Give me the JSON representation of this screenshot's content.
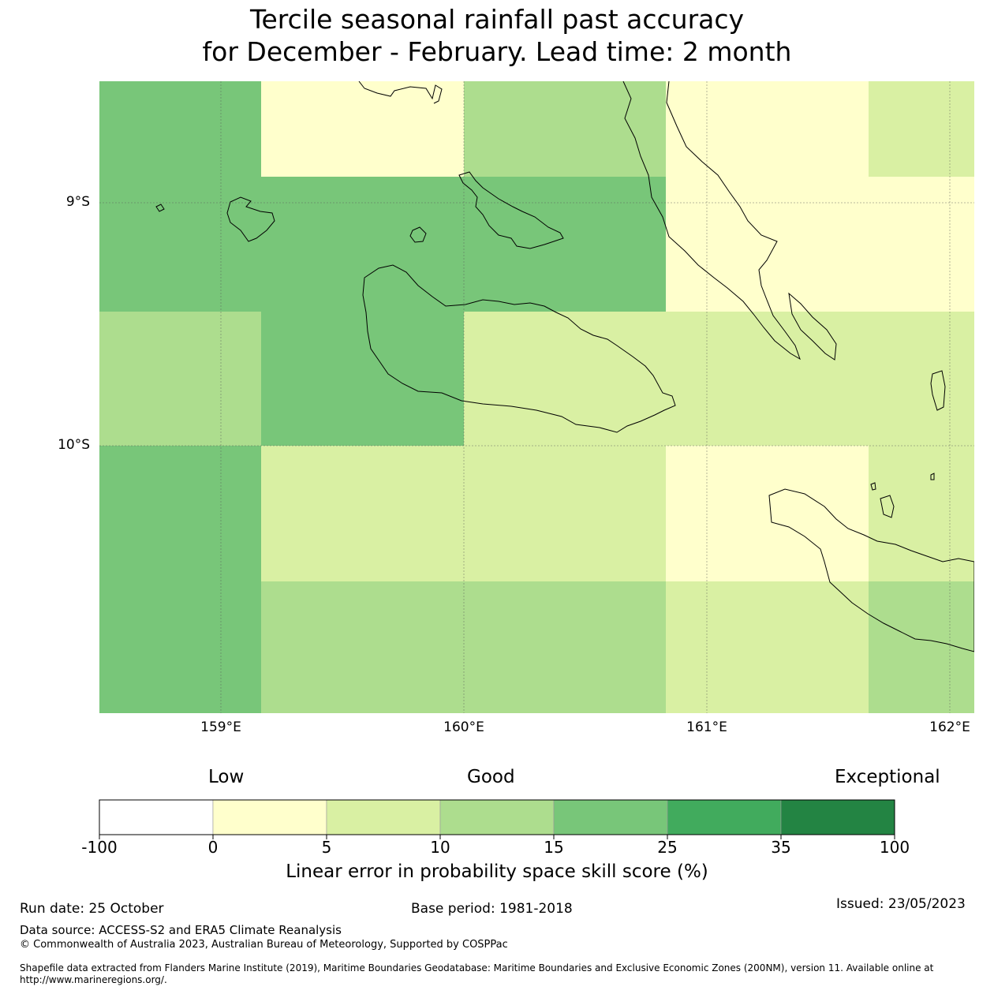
{
  "title": {
    "line1": "Tercile seasonal rainfall past accuracy",
    "line2": "for December - February. Lead time: 2 month"
  },
  "map": {
    "lat_labels": [
      "9°S",
      "10°S"
    ],
    "lon_labels": [
      "159°E",
      "160°E",
      "161°E",
      "162°E"
    ],
    "skill_grid_pct": [
      [
        20,
        2.5,
        12,
        2.5,
        7.5
      ],
      [
        20,
        20,
        20,
        2.5,
        2.5
      ],
      [
        12,
        20,
        7.5,
        7.5,
        7.5
      ],
      [
        20,
        7.5,
        7.5,
        2.5,
        7.5
      ],
      [
        20,
        12,
        12,
        7.5,
        12
      ]
    ]
  },
  "legend": {
    "categories": [
      "Low",
      "Good",
      "Exceptional"
    ],
    "ticks": [
      "-100",
      "0",
      "5",
      "10",
      "15",
      "25",
      "35",
      "100"
    ],
    "colors": [
      "#ffffff",
      "#ffffcc",
      "#d9f0a3",
      "#addd8e",
      "#78c679",
      "#41ab5d",
      "#238443"
    ],
    "label": "Linear error in probability space skill score (%)"
  },
  "footer": {
    "run_date": "Run date: 25 October",
    "base_period": "Base period: 1981-2018",
    "issued": "Issued: 23/05/2023",
    "data_source": "Data source: ACCESS-S2 and ERA5 Climate Reanalysis",
    "copyright": "© Commonwealth of Australia 2023, Australian Bureau of Meteorology, Supported by COSPPac",
    "shapefile": "Shapefile data extracted from Flanders Marine Institute (2019), Maritime Boundaries Geodatabase: Maritime Boundaries and Exclusive Economic Zones (200NM), version 11. Available online at http://www.marineregions.org/."
  }
}
